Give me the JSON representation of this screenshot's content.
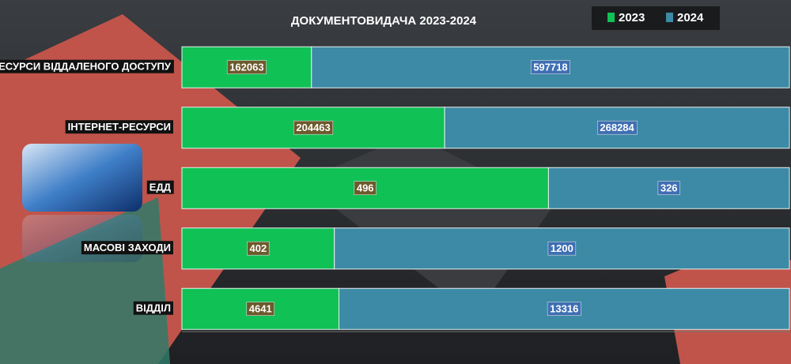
{
  "chart_data": {
    "type": "bar",
    "stacked_percent": true,
    "orientation": "horizontal",
    "title": "ДОКУМЕНТОВИДАЧА  2023-2024",
    "categories": [
      "РЕСУРСИ ВІДДАЛЕНОГО ДОСТУПУ",
      "ІНТЕРНЕТ-РЕСУРСИ",
      "ЕДД",
      "МАСОВІ ЗАХОДИ",
      "ВІДДІЛ"
    ],
    "series": [
      {
        "name": "2023",
        "color": "#10c155",
        "values": [
          162063,
          204463,
          496,
          402,
          4641
        ]
      },
      {
        "name": "2024",
        "color": "#3c8aa6",
        "values": [
          597718,
          268284,
          326,
          1200,
          13316
        ]
      }
    ],
    "legend": "top-right"
  }
}
